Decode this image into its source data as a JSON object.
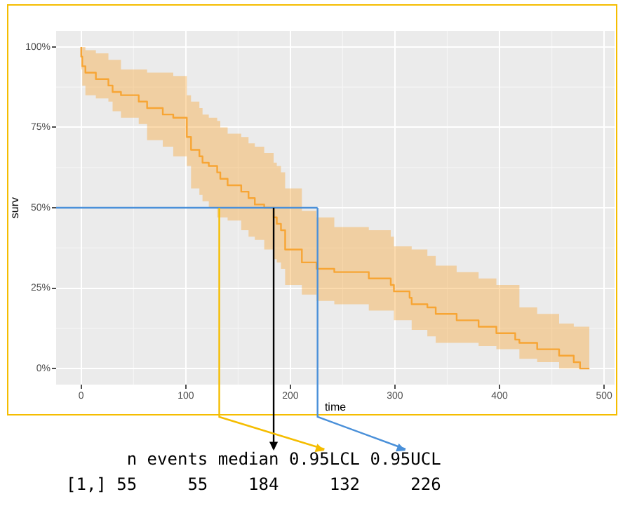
{
  "chart_data": {
    "type": "step",
    "xlabel": "time",
    "ylabel": "surv",
    "x": [
      0,
      1,
      4,
      14,
      26,
      30,
      38,
      55,
      63,
      78,
      88,
      101,
      105,
      113,
      116,
      122,
      130,
      133,
      140,
      153,
      160,
      166,
      175,
      184,
      187,
      191,
      195,
      211,
      225,
      242,
      275,
      296,
      299,
      314,
      316,
      331,
      339,
      359,
      380,
      397,
      415,
      419,
      436,
      457,
      471,
      477,
      486
    ],
    "series": [
      {
        "color": "#f7a535",
        "values": [
          1.0,
          0.97,
          0.94,
          0.92,
          0.9,
          0.88,
          0.86,
          0.85,
          0.83,
          0.81,
          0.79,
          0.78,
          0.72,
          0.68,
          0.66,
          0.64,
          0.63,
          0.61,
          0.59,
          0.57,
          0.55,
          0.53,
          0.51,
          0.5,
          0.47,
          0.45,
          0.43,
          0.37,
          0.33,
          0.31,
          0.3,
          0.28,
          0.26,
          0.24,
          0.22,
          0.2,
          0.19,
          0.17,
          0.15,
          0.13,
          0.11,
          0.09,
          0.08,
          0.06,
          0.04,
          0.02,
          0.0
        ],
        "lower": [
          1.0,
          0.93,
          0.88,
          0.85,
          0.84,
          0.83,
          0.8,
          0.78,
          0.76,
          0.71,
          0.69,
          0.66,
          0.63,
          0.56,
          0.54,
          0.52,
          0.5,
          0.47,
          0.47,
          0.46,
          0.43,
          0.41,
          0.4,
          0.37,
          0.34,
          0.33,
          0.31,
          0.26,
          0.23,
          0.21,
          0.2,
          0.18,
          0.18,
          0.15,
          0.15,
          0.12,
          0.1,
          0.08,
          0.08,
          0.07,
          0.06,
          0.06,
          0.03,
          0.02,
          0.0,
          0.0,
          0.0
        ],
        "upper": [
          1.0,
          1.0,
          1.0,
          0.99,
          0.98,
          0.96,
          0.96,
          0.93,
          0.93,
          0.92,
          0.92,
          0.91,
          0.85,
          0.83,
          0.81,
          0.79,
          0.78,
          0.77,
          0.75,
          0.73,
          0.72,
          0.7,
          0.69,
          0.67,
          0.64,
          0.63,
          0.61,
          0.56,
          0.49,
          0.47,
          0.44,
          0.43,
          0.41,
          0.38,
          0.38,
          0.37,
          0.35,
          0.32,
          0.3,
          0.28,
          0.26,
          0.26,
          0.19,
          0.17,
          0.14,
          0.13,
          0.13
        ]
      }
    ],
    "xlim": [
      -24,
      510
    ],
    "xticks": [
      0,
      100,
      200,
      300,
      400,
      500
    ],
    "ylim": [
      -0.05,
      1.05
    ],
    "yticks": [
      {
        "value": 0,
        "label": "0%"
      },
      {
        "value": 0.25,
        "label": "25%"
      },
      {
        "value": 0.5,
        "label": "50%"
      },
      {
        "value": 0.75,
        "label": "75%"
      },
      {
        "value": 1,
        "label": "100%"
      }
    ],
    "grid": true,
    "legend": false,
    "ref_lines": [
      {
        "axis": "y",
        "value": 0.5,
        "color": "#4a90d9"
      },
      {
        "axis": "x",
        "value": 184,
        "color": "#000000"
      },
      {
        "axis": "x",
        "value": 132,
        "color": "#f5bd00"
      },
      {
        "axis": "x",
        "value": 226,
        "color": "#4a90d9"
      }
    ],
    "annotations": [
      "      n events median 0.95LCL 0.95UCL",
      "[1,] 55     55    184     132     226"
    ]
  }
}
